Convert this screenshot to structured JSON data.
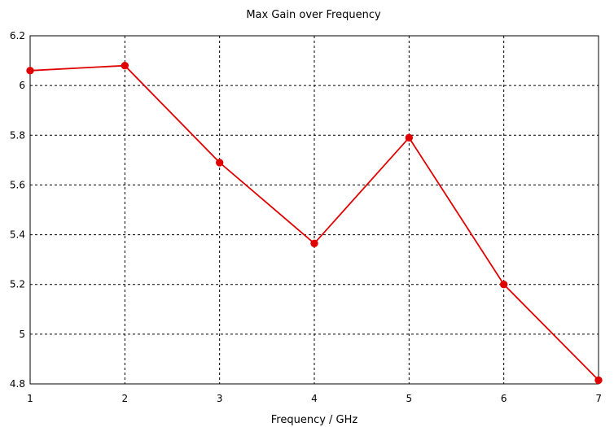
{
  "chart_data": {
    "type": "line",
    "title": "Max Gain over Frequency",
    "xlabel": "Frequency / GHz",
    "ylabel": "",
    "xlim": [
      1,
      7
    ],
    "ylim": [
      4.8,
      6.2
    ],
    "x_ticks": [
      "1",
      "2",
      "3",
      "4",
      "5",
      "6",
      "7"
    ],
    "y_ticks": [
      "4.8",
      "5",
      "5.2",
      "5.4",
      "5.6",
      "5.8",
      "6",
      "6.2"
    ],
    "grid": true,
    "series": [
      {
        "color": "#e00000",
        "x": [
          1,
          2,
          3,
          4,
          5,
          6,
          7
        ],
        "y": [
          6.06,
          6.08,
          5.69,
          5.365,
          5.79,
          5.2,
          4.815
        ]
      }
    ]
  }
}
